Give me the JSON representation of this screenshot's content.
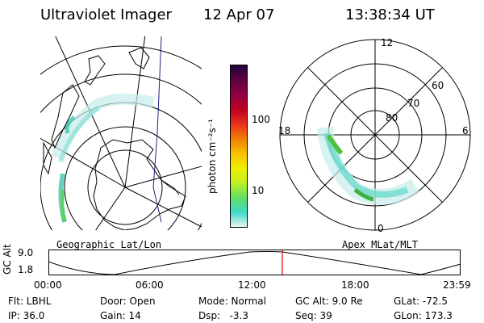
{
  "header": {
    "instrument": "Ultraviolet Imager",
    "date": "12 Apr 07",
    "time": "13:38:34 UT"
  },
  "geo_panel": {
    "label": "Geographic Lat/Lon"
  },
  "apex_panel": {
    "label": "Apex MLat/MLT",
    "mlt_labels": [
      "12",
      "18",
      "6",
      "0"
    ],
    "mlat_labels": [
      "60",
      "70",
      "80"
    ]
  },
  "colorbar": {
    "unit_label": "photon cm⁻²s⁻¹",
    "tick_labels": [
      "100",
      "10"
    ],
    "colors": [
      "#e8f4f0",
      "#40d8c8",
      "#60e060",
      "#c0f020",
      "#f0f000",
      "#f8c000",
      "#f08000",
      "#e83020",
      "#c00020",
      "#900040",
      "#600040",
      "#200040"
    ]
  },
  "altitude_plot": {
    "ylabel": "GC Alt",
    "ytick_labels": [
      "9.0",
      "1.8"
    ],
    "xtick_labels": [
      "00:00",
      "06:00",
      "12:00",
      "18:00",
      "23:59"
    ],
    "current_time_marker_color": "#e00000"
  },
  "status": {
    "row1": {
      "flt": "Flt: LBHL",
      "door": "Door: Open",
      "mode": "Mode: Normal",
      "gcalt": "GC Alt: 9.0 Re",
      "glat": "GLat: -72.5"
    },
    "row2": {
      "ip": "IP: 36.0",
      "gain": "Gain: 14",
      "dsp": "Dsp:   -3.3",
      "seq": "Seq: 39",
      "glon": "GLon: 173.3"
    }
  }
}
